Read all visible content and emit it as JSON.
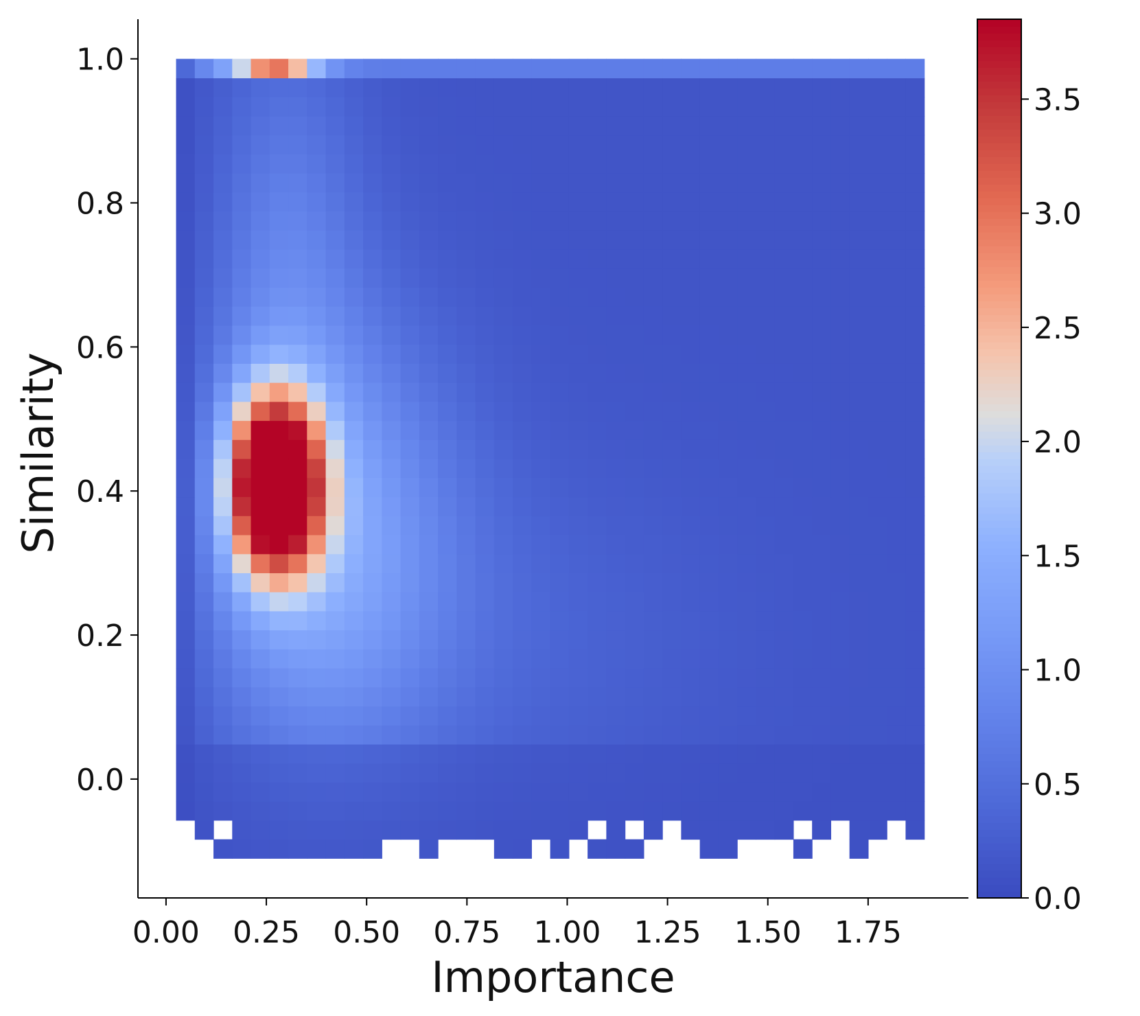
{
  "chart_data": {
    "type": "heatmap",
    "xlabel": "Importance",
    "ylabel": "Similarity",
    "xlim": [
      -0.07,
      2.0
    ],
    "ylim": [
      -0.165,
      1.055
    ],
    "xticks": [
      0.0,
      0.25,
      0.5,
      0.75,
      1.0,
      1.25,
      1.5,
      1.75
    ],
    "xtick_labels": [
      "0.00",
      "0.25",
      "0.50",
      "0.75",
      "1.00",
      "1.25",
      "1.50",
      "1.75"
    ],
    "yticks": [
      0.0,
      0.2,
      0.4,
      0.6,
      0.8,
      1.0
    ],
    "ytick_labels": [
      "0.0",
      "0.2",
      "0.4",
      "0.6",
      "0.8",
      "1.0"
    ],
    "x_bin_edges_range": [
      0.025,
      1.89
    ],
    "n_x_bins": 40,
    "y_bin_edges_range": [
      -0.11,
      1.0
    ],
    "n_y_bins": 42,
    "grid": false,
    "colormap": "coolwarm",
    "colorbar": {
      "vmin": 0.0,
      "vmax": 3.85,
      "ticks": [
        0.0,
        0.5,
        1.0,
        1.5,
        2.0,
        2.5,
        3.0,
        3.5
      ],
      "tick_labels": [
        "0.0",
        "0.5",
        "1.0",
        "1.5",
        "2.0",
        "2.5",
        "3.0",
        "3.5"
      ]
    },
    "density_peak": {
      "importance": 0.27,
      "similarity": 0.4,
      "value": 3.85
    },
    "top_row_peak": {
      "importance": 0.27,
      "similarity": 0.99,
      "value": 2.9
    },
    "empty_cells_bottom_row_x": [
      0.55,
      0.63,
      0.68,
      0.73,
      0.78,
      0.92,
      1.02,
      1.21,
      1.26,
      1.31,
      1.45,
      1.5,
      1.54,
      1.64,
      1.69,
      1.78,
      1.83,
      1.87
    ],
    "empty_cells_second_row_x": [
      0.12,
      1.08,
      1.17,
      1.27,
      1.59,
      1.69,
      1.83
    ]
  }
}
